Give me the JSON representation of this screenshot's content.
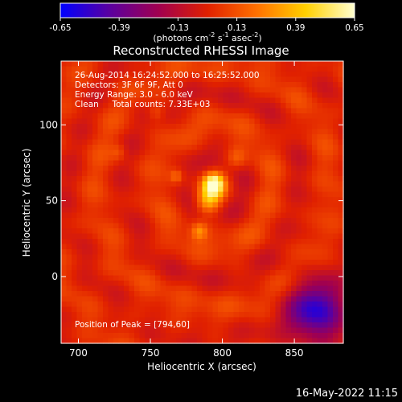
{
  "chart_data": {
    "type": "heatmap",
    "title": "Reconstructed RHESSI Image",
    "xlabel": "Heliocentric X (arcsec)",
    "ylabel": "Heliocentric Y (arcsec)",
    "xlim": [
      688,
      884
    ],
    "ylim": [
      -44,
      142
    ],
    "x_ticks": [
      700,
      750,
      800,
      850
    ],
    "y_ticks": [
      0,
      50,
      100
    ],
    "colorbar": {
      "min": -0.65,
      "max": 0.65,
      "ticks": [
        "-0.65",
        "-0.39",
        "-0.13",
        "0.13",
        "0.39",
        "0.65"
      ],
      "units_label": "(photons cm",
      "units_label_sup1": "-2",
      "units_label_mid": " s",
      "units_label_sup2": "-1",
      "units_label_mid2": " asec",
      "units_label_sup3": "-2",
      "units_label_end": ")",
      "colors": [
        "#0000ff",
        "#5a00a0",
        "#a00050",
        "#e02000",
        "#ff7000",
        "#ffd000",
        "#ffffd0"
      ]
    },
    "annotations": {
      "line1": "26-Aug-2014 16:24:52.000 to 16:25:52.000",
      "line2": "Detectors: 3F 6F 9F, Att 0",
      "line3": "Energy Range: 3.0 - 6.0 keV",
      "line4": "Clean     Total counts: 7.33E+03",
      "peak_label": "Position of Peak = [794,60]"
    },
    "peak": [
      794,
      60
    ],
    "sources": [
      {
        "x": 794,
        "y": 61,
        "sigma": 5,
        "amp": 0.62
      },
      {
        "x": 790,
        "y": 50,
        "sigma": 6,
        "amp": 0.38
      },
      {
        "x": 784,
        "y": 30,
        "sigma": 4,
        "amp": 0.25
      },
      {
        "x": 768,
        "y": 66,
        "sigma": 3,
        "amp": 0.18
      },
      {
        "x": 810,
        "y": 78,
        "sigma": 5,
        "amp": 0.16
      },
      {
        "x": 754,
        "y": 108,
        "sigma": 4,
        "amp": 0.12
      },
      {
        "x": 728,
        "y": 82,
        "sigma": 4,
        "amp": 0.12
      }
    ],
    "dark_region": {
      "x": 866,
      "y": -24,
      "sigma": 14,
      "amp": -0.55
    }
  },
  "footer": {
    "timestamp": "16-May-2022 11:15"
  }
}
